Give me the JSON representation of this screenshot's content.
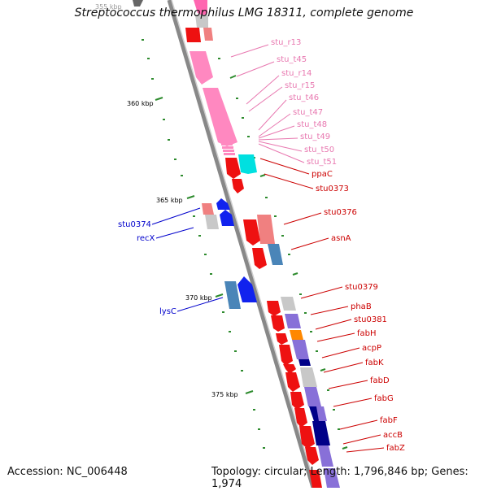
{
  "title": "Streptococcus thermophilus LMG 18311, complete genome",
  "footer": {
    "accession": "Accession: NC_006448",
    "topology": "Topology: circular; Length: 1,796,846 bp; Genes: 1,974"
  },
  "colors": {
    "axis": "#888888",
    "tick": "#2e8b2e",
    "rna_label": "#e878b0",
    "gene_label": "#cc0000",
    "left_label": "#0000cc",
    "red_gene": "#ee1111",
    "pink_rna": "#ff88c0",
    "blue_gene": "#1122ee",
    "steel": "#4a85b8",
    "purple": "#8870d8",
    "navy": "#000088",
    "cyan": "#00e0e0",
    "orange": "#ff8800",
    "salmon": "#f08080",
    "gray": "#c8c8c8"
  },
  "scale_labels": [
    "355 kbp",
    "360 kbp",
    "365 kbp",
    "370 kbp",
    "375 kbp"
  ],
  "right_labels": [
    {
      "text": "stu_r13",
      "kind": "rna"
    },
    {
      "text": "stu_t45",
      "kind": "rna"
    },
    {
      "text": "stu_r14",
      "kind": "rna"
    },
    {
      "text": "stu_r15",
      "kind": "rna"
    },
    {
      "text": "stu_t46",
      "kind": "rna"
    },
    {
      "text": "stu_t47",
      "kind": "rna"
    },
    {
      "text": "stu_t48",
      "kind": "rna"
    },
    {
      "text": "stu_t49",
      "kind": "rna"
    },
    {
      "text": "stu_t50",
      "kind": "rna"
    },
    {
      "text": "stu_t51",
      "kind": "rna"
    },
    {
      "text": "ppaC",
      "kind": "gene"
    },
    {
      "text": "stu0373",
      "kind": "gene"
    },
    {
      "text": "stu0376",
      "kind": "gene"
    },
    {
      "text": "asnA",
      "kind": "gene"
    },
    {
      "text": "stu0379",
      "kind": "gene"
    },
    {
      "text": "phaB",
      "kind": "gene"
    },
    {
      "text": "stu0381",
      "kind": "gene"
    },
    {
      "text": "fabH",
      "kind": "gene"
    },
    {
      "text": "acpP",
      "kind": "gene"
    },
    {
      "text": "fabK",
      "kind": "gene"
    },
    {
      "text": "fabD",
      "kind": "gene"
    },
    {
      "text": "fabG",
      "kind": "gene"
    },
    {
      "text": "fabF",
      "kind": "gene"
    },
    {
      "text": "accB",
      "kind": "gene"
    },
    {
      "text": "fabZ",
      "kind": "gene"
    }
  ],
  "left_labels": [
    {
      "text": "stu0374"
    },
    {
      "text": "recX"
    },
    {
      "text": "lysC"
    }
  ]
}
